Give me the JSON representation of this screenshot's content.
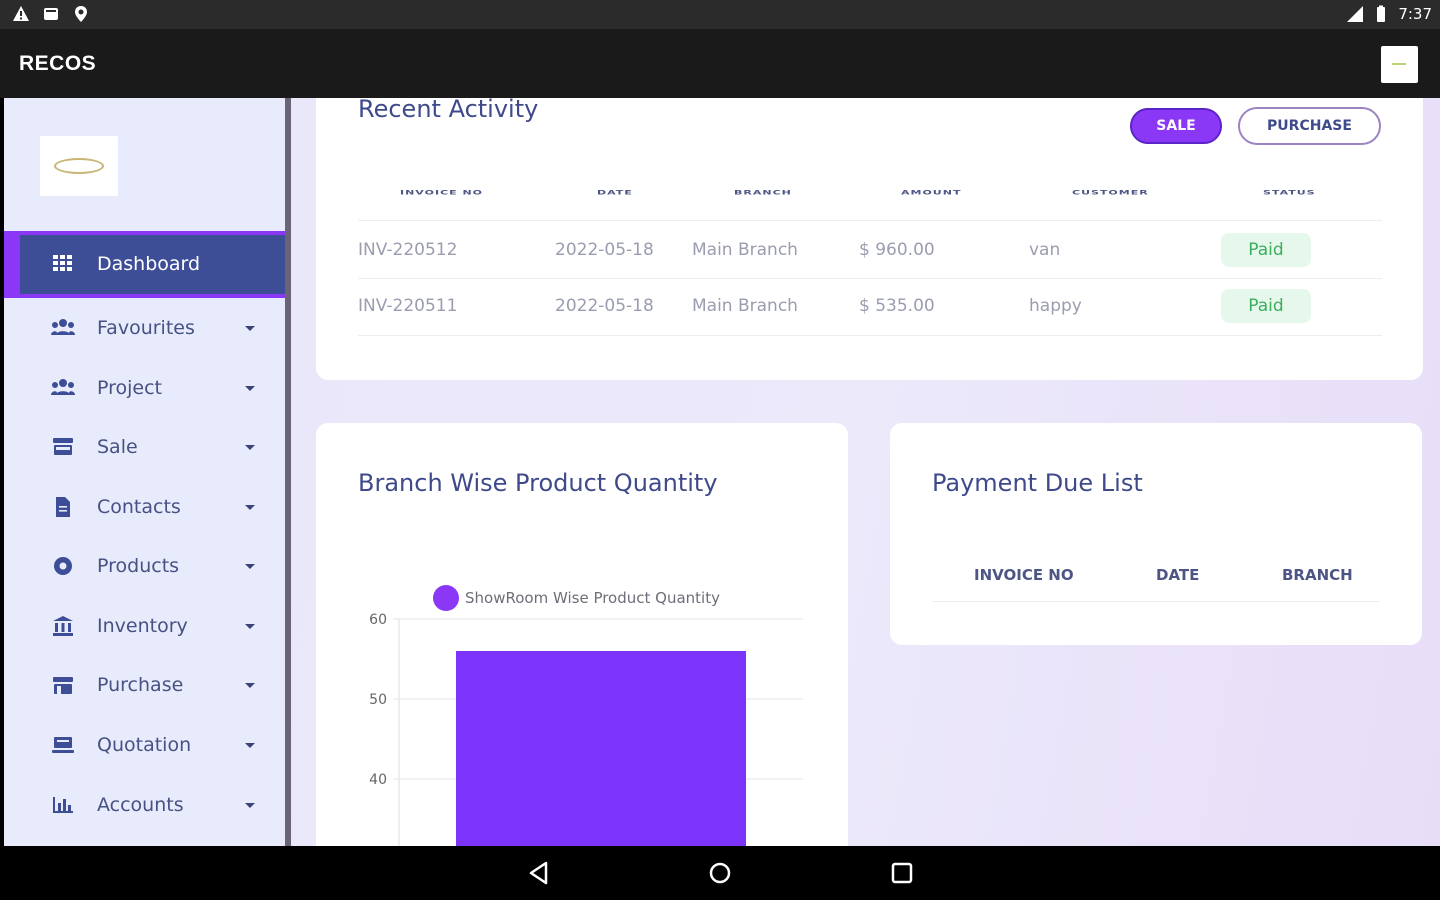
{
  "status_bar": {
    "left_icons": [
      "warning-icon",
      "gallery-icon",
      "location-icon"
    ],
    "right_icons": [
      "signal-icon",
      "battery-icon"
    ],
    "time": "7:37"
  },
  "app_bar": {
    "title": "RECOS"
  },
  "sidebar": {
    "active_color": "#8a38f5",
    "items": [
      {
        "label": "Dashboard",
        "icon": "grid-icon"
      },
      {
        "label": "Favourites",
        "icon": "users-icon"
      },
      {
        "label": "Project",
        "icon": "users-icon"
      },
      {
        "label": "Sale",
        "icon": "store-icon"
      },
      {
        "label": "Contacts",
        "icon": "document-icon"
      },
      {
        "label": "Products",
        "icon": "product-icon"
      },
      {
        "label": "Inventory",
        "icon": "bank-icon"
      },
      {
        "label": "Purchase",
        "icon": "cart-icon"
      },
      {
        "label": "Quotation",
        "icon": "keyboard-icon"
      },
      {
        "label": "Accounts",
        "icon": "bar-chart-icon"
      }
    ]
  },
  "recent_activity": {
    "title": "Recent Activity",
    "sale_label": "SALE",
    "purchase_label": "PURCHASE",
    "columns": [
      "INVOICE NO",
      "DATE",
      "BRANCH",
      "AMOUNT",
      "CUSTOMER",
      "STATUS"
    ],
    "rows": [
      {
        "invoice": "INV-220512",
        "date": "2022-05-18",
        "branch": "Main Branch",
        "amount": "$ 960.00",
        "customer": "van",
        "status": "Paid"
      },
      {
        "invoice": "INV-220511",
        "date": "2022-05-18",
        "branch": "Main Branch",
        "amount": "$ 535.00",
        "customer": "happy",
        "status": "Paid"
      }
    ]
  },
  "branch_chart": {
    "title": "Branch Wise Product Quantity",
    "legend": "ShowRoom Wise Product Quantity",
    "color": "#7c33fa"
  },
  "chart_data": {
    "type": "bar",
    "title": "Branch Wise Product Quantity",
    "categories": [
      ""
    ],
    "series": [
      {
        "name": "ShowRoom Wise Product Quantity",
        "values": [
          56
        ]
      }
    ],
    "y_ticks": [
      60,
      50,
      40
    ],
    "ylim_visible": [
      30,
      60
    ],
    "grid": true,
    "legend_position": "top"
  },
  "payment_due": {
    "title": "Payment Due List",
    "columns": [
      "INVOICE NO",
      "DATE",
      "BRANCH"
    ]
  },
  "nav_bar": {
    "buttons": [
      "back-icon",
      "home-icon",
      "recents-icon"
    ]
  }
}
